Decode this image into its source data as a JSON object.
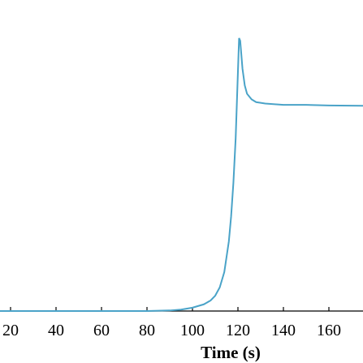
{
  "chart_data": {
    "type": "line",
    "title": "",
    "xlabel": "Time (s)",
    "ylabel": "",
    "xlim": [
      10,
      175
    ],
    "ylim": [
      0,
      1
    ],
    "x_ticks": [
      20,
      40,
      60,
      80,
      100,
      120,
      140,
      160
    ],
    "x_tick_labels": [
      "20",
      "40",
      "60",
      "80",
      "100",
      "120",
      "140",
      "160"
    ],
    "grid": false,
    "series": [
      {
        "color": "#4aa3c8",
        "x": [
          10,
          40,
          60,
          80,
          90,
          95,
          100,
          105,
          108,
          110,
          112,
          114,
          116,
          117,
          118,
          119,
          120,
          120.5,
          121,
          122,
          123,
          124,
          126,
          128,
          132,
          140,
          150,
          160,
          175
        ],
        "y": [
          0.0,
          0.0,
          0.0,
          0.0,
          0.002,
          0.005,
          0.012,
          0.024,
          0.038,
          0.055,
          0.085,
          0.14,
          0.25,
          0.34,
          0.46,
          0.62,
          0.86,
          0.98,
          0.97,
          0.87,
          0.81,
          0.78,
          0.76,
          0.75,
          0.745,
          0.74,
          0.74,
          0.738,
          0.737
        ]
      }
    ]
  }
}
